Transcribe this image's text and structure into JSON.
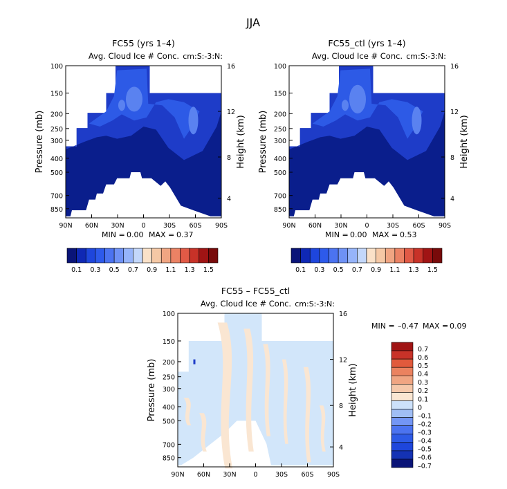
{
  "title": "JJA",
  "colors": {
    "deep_blue": "#0a1e8c",
    "mid_blue": "#1e3cc8",
    "blue": "#2d5ae6",
    "light_blue": "#5a82f0",
    "pale_blue": "#d2e6fa",
    "peach": "#fae6d2",
    "warm_scale": [
      "#fae1c8",
      "#f5c8a5",
      "#f0a582",
      "#eb8264",
      "#e15a46",
      "#c83228",
      "#a01414",
      "#780a0a"
    ],
    "cool_scale": [
      "#0a1478",
      "#0f28b4",
      "#1e46dc",
      "#2d5aeb",
      "#4b73f0",
      "#6e91f5",
      "#96b4fa",
      "#c3d7fa"
    ],
    "diff_scale": [
      "#0a1478",
      "#1432b4",
      "#1e46dc",
      "#2d5ae6",
      "#4b73f0",
      "#7396f5",
      "#a0bef5",
      "#cde1fa",
      "#fae6d2",
      "#f5c8aa",
      "#f0a582",
      "#eb825f",
      "#e15a3c",
      "#c83228",
      "#a01414"
    ]
  },
  "chart_data": [
    {
      "type": "heatmap",
      "panel_title": "FC55 (yrs 1–4)",
      "subtitle": "Avg. Cloud Ice # Conc.",
      "units_label": "cm:S:-3:N:",
      "ylabel": "Pressure (mb)",
      "right_ylabel": "Height (km)",
      "x_ticks": [
        "90N",
        "60N",
        "30N",
        "0",
        "30S",
        "60S",
        "90S"
      ],
      "y_ticks": [
        "100",
        "150",
        "200",
        "250",
        "300",
        "400",
        "500",
        "700",
        "850"
      ],
      "right_ticks": [
        "16",
        "12",
        "8",
        "4"
      ],
      "min_label": "MIN =",
      "min_value": "0.00",
      "max_label": "MAX =",
      "max_value": "0.37",
      "min": 0.0,
      "max": 0.37,
      "colorbar_labels": [
        "0.1",
        "0.3",
        "0.5",
        "0.7",
        "0.9",
        "1.1",
        "1.3",
        "1.5"
      ]
    },
    {
      "type": "heatmap",
      "panel_title": "FC55_ctl (yrs 1–4)",
      "subtitle": "Avg. Cloud Ice # Conc.",
      "units_label": "cm:S:-3:N:",
      "ylabel": "Pressure (mb)",
      "right_ylabel": "Height (km)",
      "x_ticks": [
        "90N",
        "60N",
        "30N",
        "0",
        "30S",
        "60S",
        "90S"
      ],
      "y_ticks": [
        "100",
        "150",
        "200",
        "250",
        "300",
        "400",
        "500",
        "700",
        "850"
      ],
      "right_ticks": [
        "16",
        "12",
        "8",
        "4"
      ],
      "min_label": "MIN =",
      "min_value": "0.00",
      "max_label": "MAX =",
      "max_value": "0.53",
      "min": 0.0,
      "max": 0.53,
      "colorbar_labels": [
        "0.1",
        "0.3",
        "0.5",
        "0.7",
        "0.9",
        "1.1",
        "1.3",
        "1.5"
      ]
    },
    {
      "type": "heatmap",
      "panel_title": "FC55 – FC55_ctl",
      "subtitle": "Avg. Cloud Ice # Conc.",
      "units_label": "cm:S:-3:N:",
      "ylabel": "Pressure (mb)",
      "right_ylabel": "Height (km)",
      "x_ticks": [
        "90N",
        "60N",
        "30N",
        "0",
        "30S",
        "60S",
        "90S"
      ],
      "y_ticks": [
        "100",
        "150",
        "200",
        "250",
        "300",
        "400",
        "500",
        "700",
        "850"
      ],
      "right_ticks": [
        "16",
        "12",
        "8",
        "4"
      ],
      "min_label": "MIN =",
      "min_value": "–0.47",
      "max_label": "MAX =",
      "max_value": "0.09",
      "min": -0.47,
      "max": 0.09,
      "colorbar_labels": [
        "0.7",
        "0.6",
        "0.5",
        "0.4",
        "0.3",
        "0.2",
        "0.1",
        "0",
        "–0.1",
        "–0.2",
        "–0.3",
        "–0.4",
        "–0.5",
        "–0.6",
        "–0.7"
      ]
    }
  ]
}
